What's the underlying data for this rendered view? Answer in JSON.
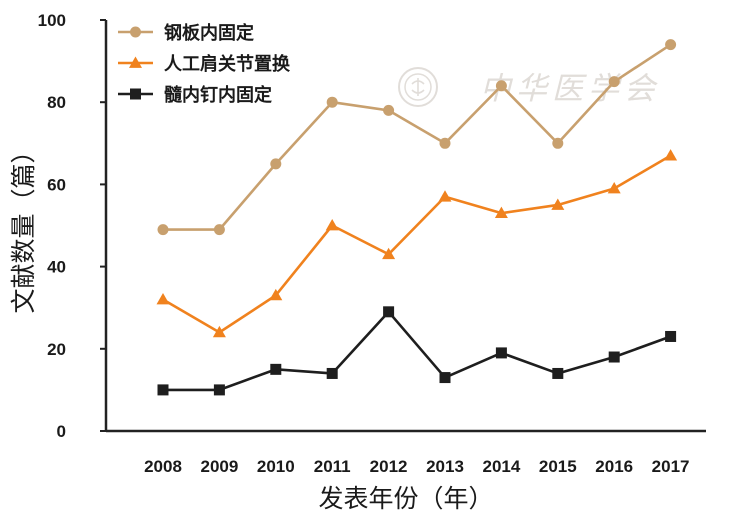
{
  "chart_data": {
    "type": "line",
    "xlabel": "发表年份（年）",
    "ylabel": "文献数量（篇）",
    "ylim": [
      0,
      100
    ],
    "y_ticks": [
      "0",
      "20",
      "40",
      "60",
      "80",
      "100"
    ],
    "categories": [
      "2008",
      "2009",
      "2010",
      "2011",
      "2012",
      "2013",
      "2014",
      "2015",
      "2016",
      "2017"
    ],
    "legend_position": "top-left",
    "grid": false,
    "series": [
      {
        "name": "钢板内固定",
        "marker": "circle",
        "color": "#c8a06e",
        "values": [
          49,
          49,
          65,
          80,
          78,
          70,
          84,
          70,
          85,
          94
        ]
      },
      {
        "name": "人工肩关节置换",
        "marker": "triangle",
        "color": "#f0821e",
        "values": [
          32,
          24,
          33,
          50,
          43,
          57,
          53,
          55,
          59,
          67
        ]
      },
      {
        "name": "髓内钉内固定",
        "marker": "square",
        "color": "#1e1e1e",
        "values": [
          10,
          10,
          15,
          14,
          29,
          13,
          19,
          14,
          18,
          23
        ]
      }
    ]
  },
  "watermark": {
    "text": "中华医学会",
    "color": "#c9c3bb"
  }
}
